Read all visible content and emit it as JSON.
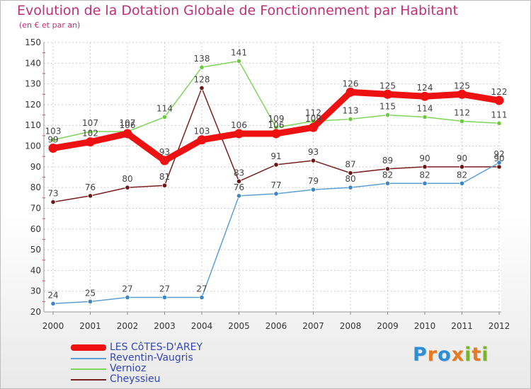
{
  "header": {
    "title": "Evolution de la Dotation Globale de Fonctionnement par Habitant",
    "subtitle": "(en € et par an)"
  },
  "logo": {
    "letters": [
      "P",
      "r",
      "o",
      "x",
      "i",
      "t",
      "i"
    ],
    "colors": [
      "#2c8fd6",
      "#e87a1e",
      "#2c8fd6",
      "#e87a1e",
      "#7ab42b",
      "#e87a1e",
      "#7ab42b"
    ]
  },
  "chart_data": {
    "type": "line",
    "title": "Evolution de la Dotation Globale de Fonctionnement par Habitant",
    "subtitle": "(en € et par an)",
    "xlabel": "",
    "ylabel": "",
    "x": [
      "2000",
      "2001",
      "2002",
      "2003",
      "2004",
      "2005",
      "2006",
      "2007",
      "2008",
      "2009",
      "2010",
      "2011",
      "2012"
    ],
    "ylim": [
      20,
      150
    ],
    "yticks": [
      20,
      30,
      40,
      50,
      60,
      70,
      80,
      90,
      100,
      110,
      120,
      130,
      140,
      150
    ],
    "grid": true,
    "legend_position": "bottom-left",
    "series": [
      {
        "name": "LES CôTES-D'AREY",
        "color": "#ee1111",
        "emphasis": "thick",
        "values": [
          99,
          102,
          106,
          93,
          103,
          106,
          106,
          109,
          126,
          125,
          124,
          125,
          122
        ],
        "labels": [
          "99",
          "102",
          "106",
          "93",
          "103",
          "106",
          "106",
          "109",
          "126",
          "125",
          "124",
          "125",
          "122"
        ]
      },
      {
        "name": "Reventin-Vaugris",
        "color": "#5d9fd3",
        "marker": "#3d85c6",
        "values": [
          24,
          25,
          27,
          27,
          27,
          76,
          77,
          79,
          80,
          82,
          82,
          82,
          92
        ],
        "labels": [
          "24",
          "25",
          "27",
          "27",
          "27",
          "76",
          "77",
          "79",
          "80",
          "82",
          "82",
          "82",
          "92"
        ]
      },
      {
        "name": "Vernioz",
        "color": "#7fd55a",
        "marker": "#6cc83f",
        "values": [
          103,
          107,
          107,
          114,
          138,
          141,
          109,
          112,
          113,
          115,
          114,
          112,
          111
        ],
        "labels": [
          "103",
          "107",
          "107",
          "114",
          "138",
          "141",
          "109",
          "112",
          "113",
          "115",
          "114",
          "112",
          "111"
        ]
      },
      {
        "name": "Cheyssieu",
        "color": "#7a1f1f",
        "marker": "#6a1616",
        "values": [
          73,
          76,
          80,
          81,
          128,
          83,
          91,
          93,
          87,
          89,
          90,
          90,
          90
        ],
        "labels": [
          "73",
          "76",
          "80",
          "81",
          "128",
          "83",
          "91",
          "93",
          "87",
          "89",
          "90",
          "90",
          "90"
        ]
      }
    ]
  }
}
